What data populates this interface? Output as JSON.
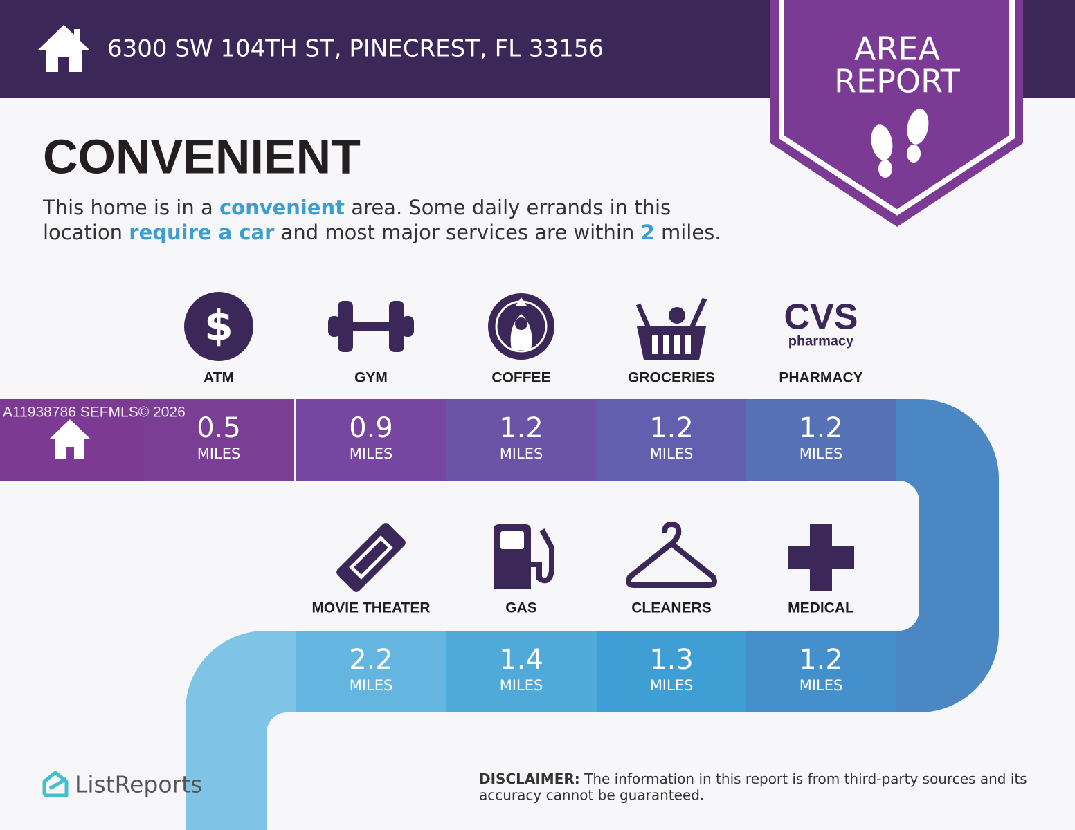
{
  "header": {
    "address": "6300 SW 104TH ST, PINECREST, FL 33156"
  },
  "badge": {
    "line1": "AREA",
    "line2": "REPORT"
  },
  "heading": "CONVENIENT",
  "description": {
    "lines": [
      [
        {
          "text": "This home is in a "
        },
        {
          "text": "convenient",
          "highlight": true
        },
        {
          "text": " area. Some daily errands in this"
        }
      ],
      [
        {
          "text": "location "
        },
        {
          "text": "require a car",
          "highlight": true
        },
        {
          "text": " and most major services are within "
        },
        {
          "text": "2",
          "highlight": true
        },
        {
          "text": " miles."
        }
      ]
    ]
  },
  "watermark": "A11938786  SEFMLS© 2026",
  "amenity_rows": [
    [
      {
        "label": "ATM",
        "icon": "atm",
        "icon_text": "$",
        "distance": 0.5,
        "unit": "MILES"
      },
      {
        "label": "GYM",
        "icon": "gym",
        "distance": 0.9,
        "unit": "MILES"
      },
      {
        "label": "COFFEE",
        "icon": "coffee",
        "distance": 1.2,
        "unit": "MILES"
      },
      {
        "label": "GROCERIES",
        "icon": "groceries",
        "distance": 1.2,
        "unit": "MILES"
      },
      {
        "label": "PHARMACY",
        "icon": "cvs",
        "icon_text": "CVS",
        "icon_subtext": "pharmacy",
        "distance": 1.2,
        "unit": "MILES"
      }
    ],
    [
      {
        "label": "MOVIE THEATER",
        "icon": "movie",
        "distance": 2.2,
        "unit": "MILES"
      },
      {
        "label": "GAS",
        "icon": "gas",
        "distance": 1.4,
        "unit": "MILES"
      },
      {
        "label": "CLEANERS",
        "icon": "cleaners",
        "distance": 1.3,
        "unit": "MILES"
      },
      {
        "label": "MEDICAL",
        "icon": "medical",
        "distance": 1.2,
        "unit": "MILES"
      }
    ]
  ],
  "footer": {
    "brand": "ListReports",
    "disclaimer_label": "DISCLAIMER:",
    "disclaimer_lines": [
      " The information in this report is from third-party sources and its",
      "accuracy cannot be guaranteed."
    ]
  }
}
